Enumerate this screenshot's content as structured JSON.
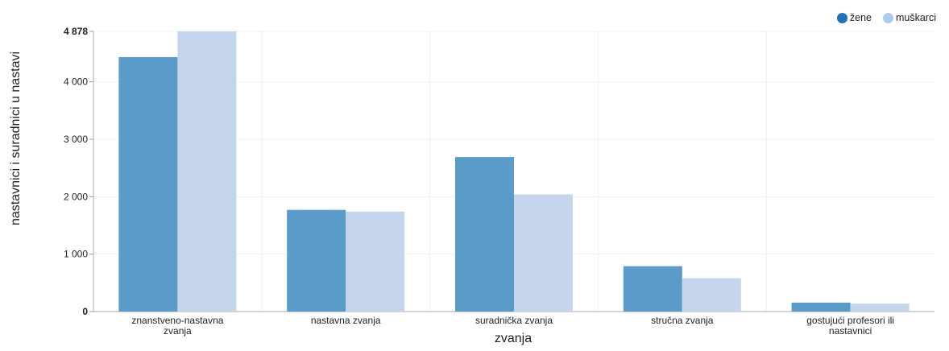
{
  "chart_data": {
    "type": "bar",
    "categories": [
      [
        "znanstveno-nastavna",
        "zvanja"
      ],
      [
        "nastavna zvanja"
      ],
      [
        "suradnička zvanja"
      ],
      [
        "stručna zvanja"
      ],
      [
        "gostujući profesori ili",
        "nastavnici"
      ]
    ],
    "series": [
      {
        "name": "žene",
        "color": "#5b9bc9",
        "values": [
          4430,
          1770,
          2690,
          790,
          155
        ]
      },
      {
        "name": "muškarci",
        "color": "#c4d5ec",
        "values": [
          4878,
          1740,
          2040,
          580,
          140
        ]
      }
    ],
    "ylim": [
      0,
      4878
    ],
    "yticks": [
      "0",
      "1 000",
      "2 000",
      "3 000",
      "4 000",
      "4 878"
    ],
    "ytick_values": [
      0,
      1000,
      2000,
      3000,
      4000,
      4878
    ],
    "xlabel": "zvanja",
    "ylabel": "nastavnici i suradnici u nastavi",
    "legend_position": "top-right",
    "grid": true
  },
  "legend_colors": {
    "zene": "#1f72b8",
    "muskarci": "#aecbea"
  }
}
